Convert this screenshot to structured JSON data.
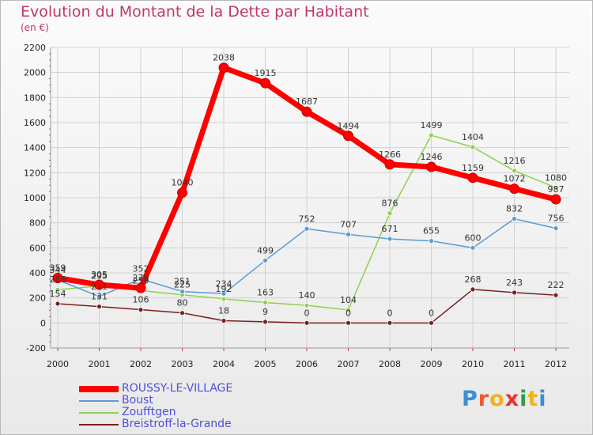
{
  "title": "Evolution du Montant de la Dette par Habitant",
  "subtitle": "(en €)",
  "logo": {
    "text": "Proxiti",
    "letter_colors": [
      "#3a8fd6",
      "#e85d2b",
      "#f2b01e",
      "#e3342f",
      "#2e9e48",
      "#f2b01e",
      "#3a8fd6"
    ]
  },
  "chart_data": {
    "type": "line",
    "x": [
      2000,
      2001,
      2002,
      2003,
      2004,
      2005,
      2006,
      2007,
      2008,
      2009,
      2010,
      2011,
      2012
    ],
    "ylim": [
      -200,
      2200
    ],
    "yticks": [
      -200,
      0,
      200,
      400,
      600,
      800,
      1000,
      1200,
      1400,
      1600,
      1800,
      2000,
      2200
    ],
    "grid": true,
    "legend_position": "bottom-left",
    "series": [
      {
        "name": "ROUSSY-LE-VILLAGE",
        "color": "#ff0000",
        "values": [
          359,
          305,
          279,
          1040,
          2038,
          1915,
          1687,
          1494,
          1266,
          1246,
          1159,
          1072,
          987
        ]
      },
      {
        "name": "Boust",
        "color": "#5a9bd5",
        "values": [
          344,
          211,
          352,
          251,
          234,
          499,
          752,
          707,
          671,
          655,
          600,
          832,
          756
        ]
      },
      {
        "name": "Zoufftgen",
        "color": "#8fd14f",
        "values": [
          266,
          295,
          259,
          225,
          192,
          163,
          140,
          104,
          876,
          1499,
          1404,
          1216,
          1080
        ]
      },
      {
        "name": "Breistroff-la-Grande",
        "color": "#7a1f1f",
        "values": [
          154,
          131,
          106,
          80,
          18,
          9,
          0,
          0,
          0,
          0,
          268,
          243,
          222
        ]
      }
    ],
    "data_labels": [
      [
        "359",
        "305",
        "279",
        "1040",
        "2038",
        "1915",
        "1687",
        "1494",
        "1266",
        "1246",
        "1159",
        "1072",
        "987"
      ],
      [
        "344",
        "211",
        "352",
        "251",
        "234",
        "499",
        "752",
        "707",
        "671",
        "655",
        "600",
        "832",
        "756"
      ],
      [
        "266",
        "295",
        "259",
        "225",
        "192",
        "163",
        "140",
        "104",
        "876",
        "1499",
        "1404",
        "1216",
        "1080"
      ],
      [
        "154",
        "131",
        "106",
        "80",
        "18",
        "9",
        "0",
        "0",
        "0",
        "0",
        "268",
        "243",
        "222"
      ]
    ]
  }
}
